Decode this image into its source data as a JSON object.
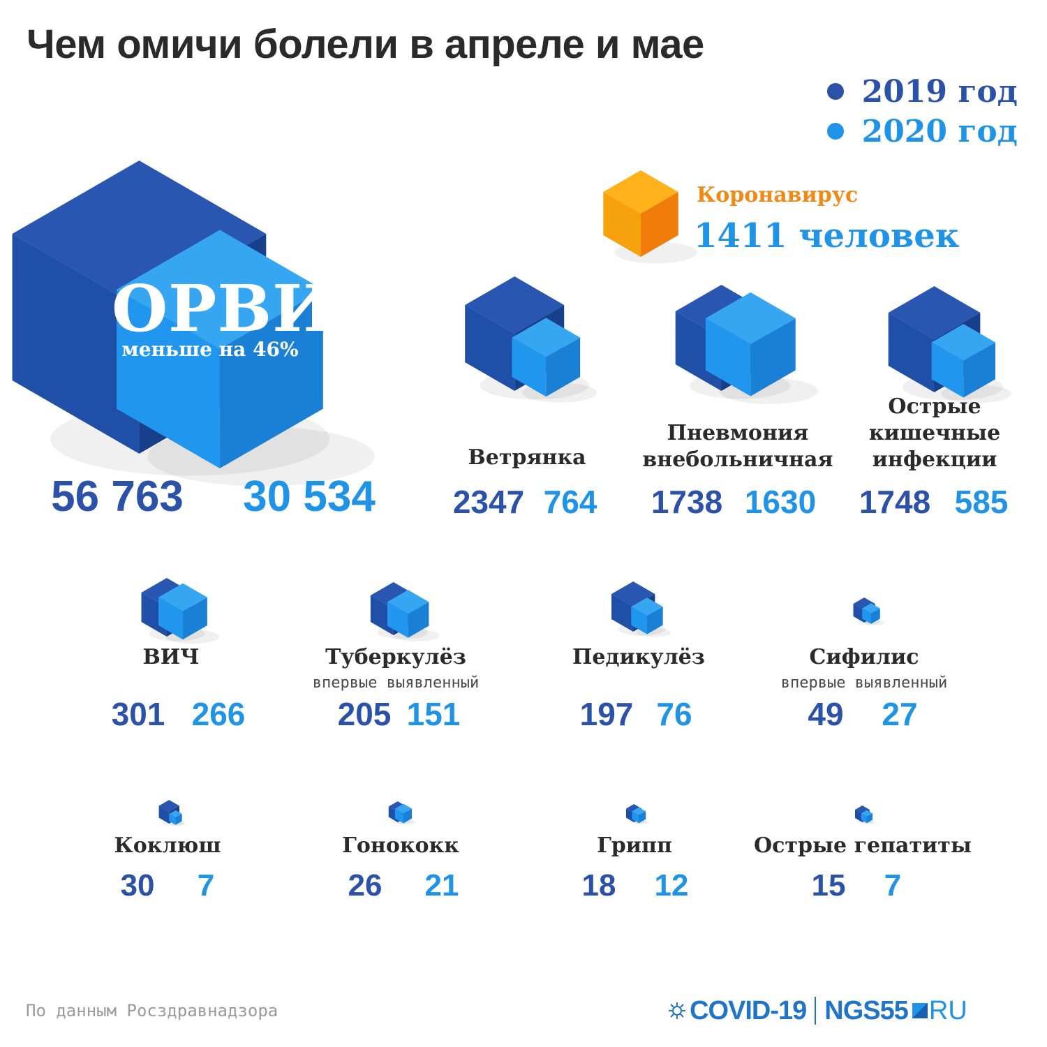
{
  "chart_data": {
    "type": "cube-comparison",
    "title": "Чем омичи болели в апреле и мае",
    "legend": [
      {
        "label": "2019 год",
        "color": "#2b52a8"
      },
      {
        "label": "2020 год",
        "color": "#1f93e6"
      }
    ],
    "legend_position": "top-right",
    "series": [
      {
        "name": "2019 год",
        "values": [
          56763,
          2347,
          1738,
          1748,
          301,
          205,
          197,
          49,
          30,
          26,
          18,
          15
        ]
      },
      {
        "name": "2020 год",
        "values": [
          30534,
          764,
          1630,
          585,
          266,
          151,
          76,
          27,
          7,
          21,
          12,
          7
        ]
      }
    ],
    "categories": [
      "ОРВИ",
      "Ветрянка",
      "Пневмония внебольничная",
      "Острые кишечные инфекции",
      "ВИЧ",
      "Туберкулёз",
      "Педикулёз",
      "Сифилис",
      "Коклюш",
      "Гонококк",
      "Грипп",
      "Острые гепатиты"
    ],
    "orvi": {
      "label": "ОРВИ",
      "note": "меньше на 46%",
      "v2019": "56 763",
      "v2020": "30 534"
    },
    "coronavirus": {
      "label": "Коронавирус",
      "value_text": "1411 человек",
      "value": 1411,
      "color": "#f59a0e"
    },
    "diseases": [
      {
        "id": "vetryanka",
        "name": [
          "Ветрянка"
        ],
        "sub": "",
        "v2019": 2347,
        "v2020": 764
      },
      {
        "id": "pnevmoniya",
        "name": [
          "Пневмония",
          "внебольничная"
        ],
        "sub": "",
        "v2019": 1738,
        "v2020": 1630
      },
      {
        "id": "kishechnye",
        "name": [
          "Острые",
          "кишечные",
          "инфекции"
        ],
        "sub": "",
        "v2019": 1748,
        "v2020": 585
      },
      {
        "id": "vich",
        "name": [
          "ВИЧ"
        ],
        "sub": "",
        "v2019": 301,
        "v2020": 266
      },
      {
        "id": "tuberkulez",
        "name": [
          "Туберкулёз"
        ],
        "sub": "впервые выявленный",
        "v2019": 205,
        "v2020": 151
      },
      {
        "id": "pedikulez",
        "name": [
          "Педикулёз"
        ],
        "sub": "",
        "v2019": 197,
        "v2020": 76
      },
      {
        "id": "sifilis",
        "name": [
          "Сифилис"
        ],
        "sub": "впервые выявленный",
        "v2019": 49,
        "v2020": 27
      },
      {
        "id": "koklyush",
        "name": [
          "Коклюш"
        ],
        "sub": "",
        "v2019": 30,
        "v2020": 7
      },
      {
        "id": "gonokokk",
        "name": [
          "Гонококк"
        ],
        "sub": "",
        "v2019": 26,
        "v2020": 21
      },
      {
        "id": "gripp",
        "name": [
          "Грипп"
        ],
        "sub": "",
        "v2019": 18,
        "v2020": 12
      },
      {
        "id": "gepatity",
        "name": [
          "Острые гепатиты"
        ],
        "sub": "",
        "v2019": 15,
        "v2020": 7
      }
    ]
  },
  "footer": {
    "source": "По данным Росздравнадзора",
    "brand_covid": "COVID-19",
    "brand_ngs": "NGS55",
    "brand_ru": "RU"
  },
  "colors": {
    "dark_front": "#1f4fa6",
    "dark_top": "#2856b0",
    "dark_side": "#173f8c",
    "light_front": "#2196ee",
    "light_top": "#36a6f2",
    "light_side": "#1a80d6"
  }
}
